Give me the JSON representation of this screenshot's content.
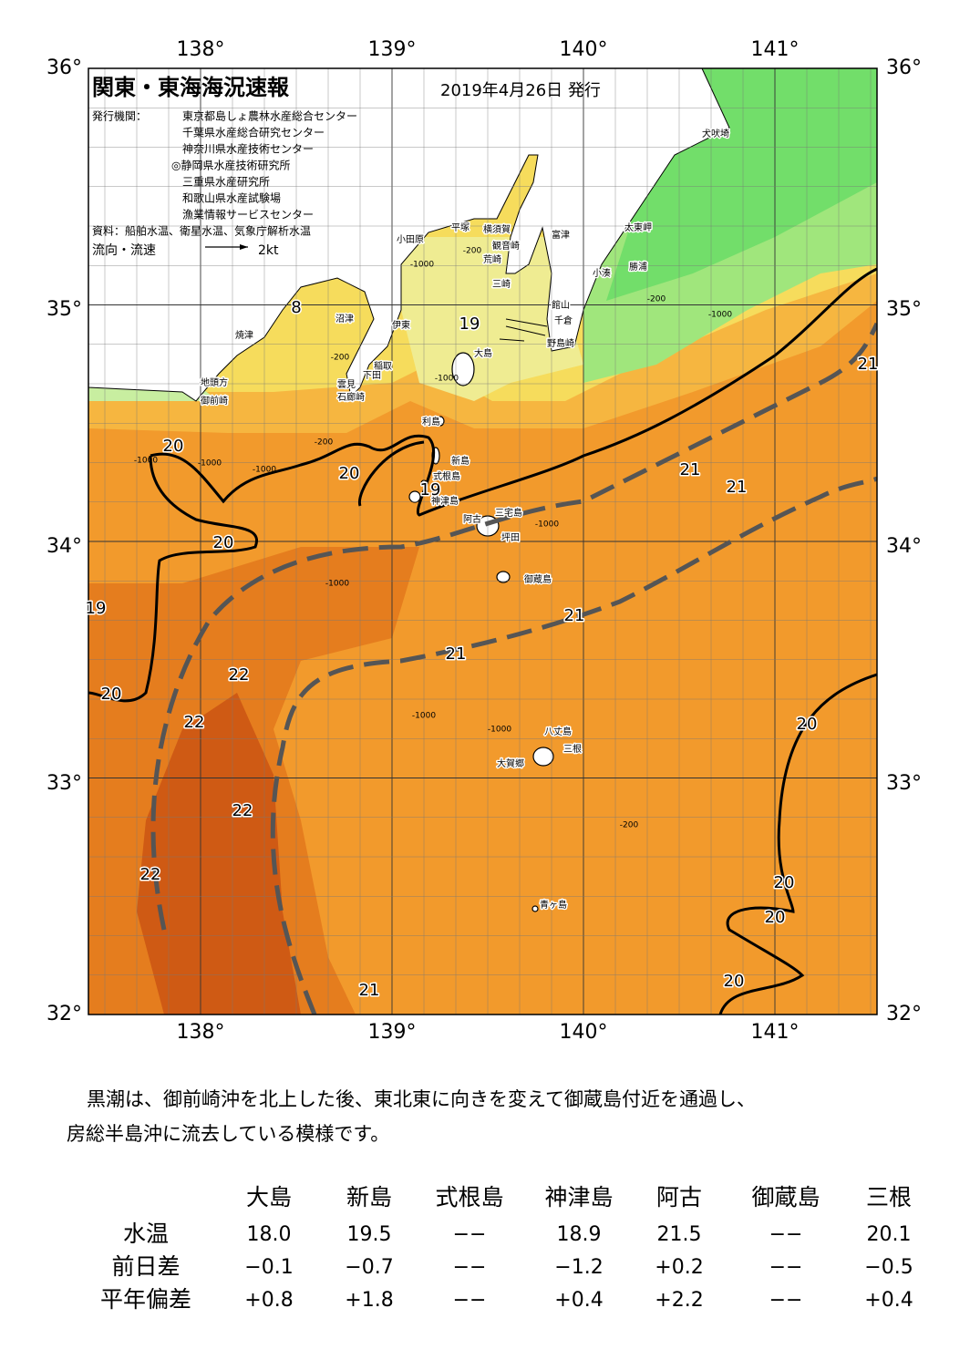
{
  "header": {
    "title": "関東・東海海況速報",
    "date": "2019年4月26日 発行",
    "agencies_label": "発行機関：",
    "agencies": [
      "東京都島しょ農林水産総合センター",
      "千葉県水産総合研究センター",
      "神奈川県水産技術センター",
      "◎静岡県水産技術研究所",
      "三重県水産研究所",
      "和歌山県水産試験場",
      "漁業情報サービスセンター"
    ],
    "sources": "資料：船舶水温、衛星水温、気象庁解析水温",
    "legend_label": "流向・流速",
    "legend_scale": "2kt"
  },
  "map": {
    "longitude_labels": [
      "138°",
      "139°",
      "140°",
      "141°"
    ],
    "latitude_labels": [
      "36°",
      "35°",
      "34°",
      "33°",
      "32°"
    ],
    "places": [
      "犬吠埼",
      "太東岬",
      "勝浦",
      "小湊",
      "富津",
      "横須賀",
      "観音崎",
      "平塚",
      "小田原",
      "荒崎",
      "三崎",
      "館山",
      "千倉",
      "野島崎",
      "沼津",
      "焼津",
      "伊東",
      "稲取",
      "下田",
      "雲見",
      "石廊崎",
      "地頭方",
      "御前崎",
      "大島",
      "利島",
      "新島",
      "式根島",
      "神津島",
      "三宅島",
      "阿古",
      "坪田",
      "御蔵島",
      "八丈島",
      "三根",
      "大賀郷",
      "青ヶ島"
    ],
    "isotherm_labels": [
      8,
      19,
      21,
      20,
      20,
      19,
      21,
      21,
      20,
      19,
      21,
      21,
      22,
      20,
      22,
      20,
      22,
      22,
      20,
      20,
      20,
      21
    ],
    "depth_labels": [
      "-1000",
      "-200",
      "-200",
      "-1000",
      "-200",
      "-1000",
      "-200",
      "-1000",
      "-1000",
      "-1000",
      "-1000",
      "-1000",
      "-1000",
      "-1000",
      "-200"
    ]
  },
  "summary": [
    "黒潮は、御前崎沖を北上した後、東北東に向きを変えて御蔵島付近を通過し、",
    "房総半島沖に流去している模様です。"
  ],
  "table": {
    "columns": [
      "大島",
      "新島",
      "式根島",
      "神津島",
      "阿古",
      "御蔵島",
      "三根"
    ],
    "rows": [
      {
        "label": "水温",
        "cells": [
          "18.0",
          "19.5",
          "−−",
          "18.9",
          "21.5",
          "−−",
          "20.1"
        ]
      },
      {
        "label": "前日差",
        "cells": [
          "−0.1",
          "−0.7",
          "−−",
          "−1.2",
          "+0.2",
          "−−",
          "−0.5"
        ]
      },
      {
        "label": "平年偏差",
        "cells": [
          "+0.8",
          "+1.8",
          "−−",
          "+0.4",
          "+2.2",
          "−−",
          "+0.4"
        ]
      }
    ]
  }
}
